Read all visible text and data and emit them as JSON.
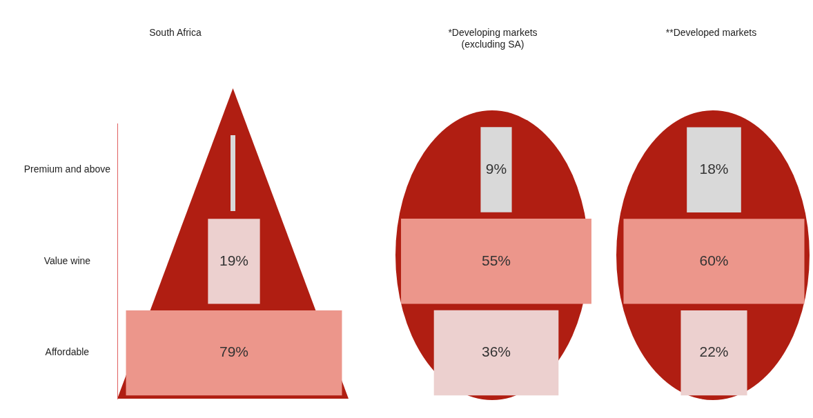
{
  "chart_data": [
    {
      "type": "other",
      "title": "South Africa",
      "categories": [
        "Premium and above",
        "Value wine",
        "Affordable"
      ],
      "values": [
        null,
        19,
        79
      ],
      "colors": [
        "#d9d9d9",
        "#ecd0cf",
        "#ec968b"
      ],
      "value_labels": [
        null,
        "19%",
        "79%"
      ]
    },
    {
      "type": "other",
      "title": "*Developing markets\n(excluding SA)",
      "values": [
        9,
        55,
        36
      ],
      "colors": [
        "#d9d9d9",
        "#ec968b",
        "#ecd0cf"
      ],
      "value_labels": [
        "9%",
        "55%",
        "36%"
      ]
    },
    {
      "type": "other",
      "title": "**Developed markets",
      "values": [
        18,
        60,
        22
      ],
      "colors": [
        "#d9d9d9",
        "#ec968b",
        "#ecd0cf"
      ],
      "value_labels": [
        "18%",
        "60%",
        "22%"
      ]
    }
  ]
}
